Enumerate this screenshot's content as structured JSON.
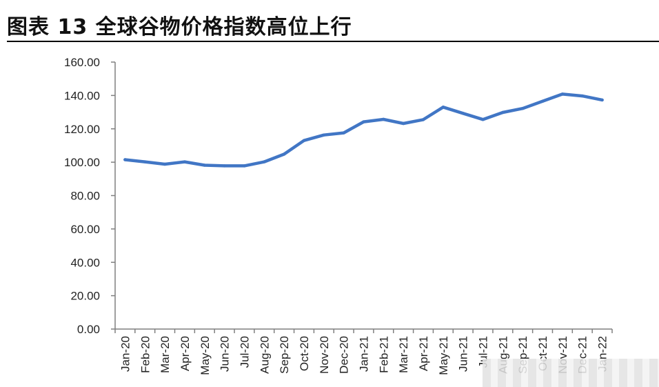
{
  "title": "图表 13  全球谷物价格指数高位上行",
  "chart_data": {
    "type": "line",
    "title": "图表 13  全球谷物价格指数高位上行",
    "xlabel": "",
    "ylabel": "",
    "ylim": [
      0,
      160
    ],
    "y_ticks": [
      "0.00",
      "20.00",
      "40.00",
      "60.00",
      "80.00",
      "100.00",
      "120.00",
      "140.00",
      "160.00"
    ],
    "categories": [
      "Jan-20",
      "Feb-20",
      "Mar-20",
      "Apr-20",
      "May-20",
      "Jun-20",
      "Jul-20",
      "Aug-20",
      "Sep-20",
      "Oct-20",
      "Nov-20",
      "Dec-20",
      "Jan-21",
      "Feb-21",
      "Mar-21",
      "Apr-21",
      "May-21",
      "Jun-21",
      "Jul-21",
      "Aug-21",
      "Sep-21",
      "Oct-21",
      "Nov-21",
      "Dec-21",
      "Jan-22"
    ],
    "series": [
      {
        "values": [
          101.5,
          100.2,
          98.8,
          100.2,
          98.2,
          97.8,
          97.8,
          100.2,
          104.8,
          113.0,
          116.3,
          117.6,
          124.2,
          125.7,
          123.2,
          125.5,
          133.0,
          129.3,
          125.6,
          129.8,
          132.2,
          136.5,
          140.8,
          139.7,
          137.3
        ],
        "color": "#4176c5"
      }
    ],
    "grid": false,
    "legend": "none"
  }
}
